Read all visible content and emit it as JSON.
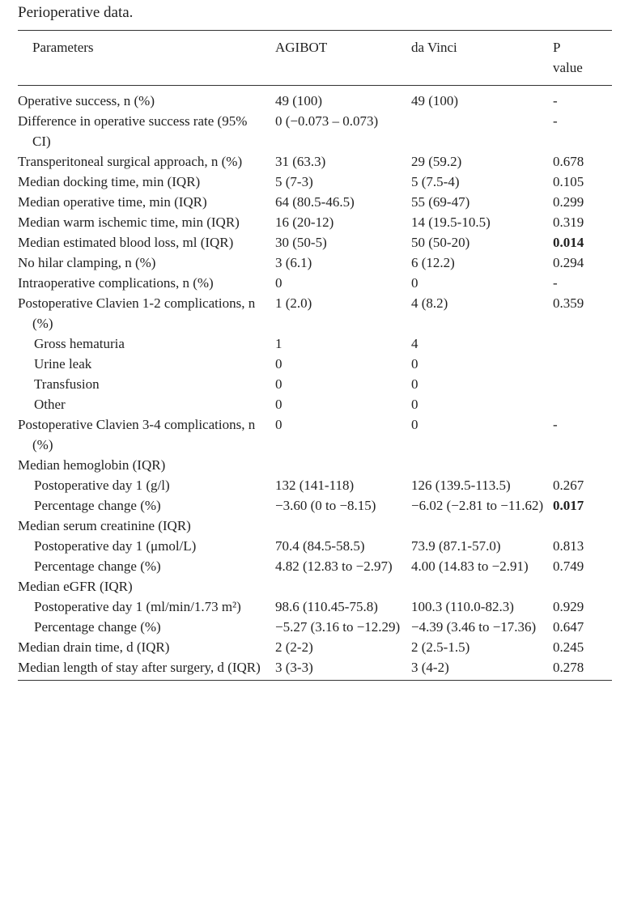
{
  "caption": "Perioperative data.",
  "table": {
    "columns": [
      "Parameters",
      "AGIBOT",
      "da Vinci",
      "P value"
    ],
    "rows": [
      {
        "cells": [
          "Operative success, n (%)",
          "49 (100)",
          "49 (100)",
          "-"
        ]
      },
      {
        "cells": [
          "Difference in operative success rate (95% CI)",
          "0 (−0.073 – 0.073)",
          null,
          "-"
        ]
      },
      {
        "cells": [
          "Transperitoneal surgical approach, n (%)",
          "31 (63.3)",
          "29 (59.2)",
          "0.678"
        ]
      },
      {
        "cells": [
          "Median docking time, min (IQR)",
          "5 (7-3)",
          "5 (7.5-4)",
          "0.105"
        ]
      },
      {
        "cells": [
          "Median operative time, min (IQR)",
          "64 (80.5-46.5)",
          "55 (69-47)",
          "0.299"
        ]
      },
      {
        "cells": [
          "Median warm ischemic time, min (IQR)",
          "16 (20-12)",
          "14 (19.5-10.5)",
          "0.319"
        ]
      },
      {
        "cells": [
          "Median estimated blood loss, ml (IQR)",
          "30 (50-5)",
          "50 (50-20)",
          "0.014"
        ],
        "bold": true
      },
      {
        "cells": [
          "No hilar clamping, n (%)",
          "3 (6.1)",
          "6 (12.2)",
          "0.294"
        ]
      },
      {
        "cells": [
          "Intraoperative complications, n (%)",
          "0",
          "0",
          "-"
        ]
      },
      {
        "cells": [
          "Postoperative Clavien 1-2 complications, n (%)",
          "1 (2.0)",
          "4 (8.2)",
          "0.359"
        ]
      },
      {
        "cells": [
          "Gross hematuria",
          "1",
          "4",
          null
        ],
        "indent": true
      },
      {
        "cells": [
          "Urine leak",
          "0",
          "0",
          null
        ],
        "indent": true
      },
      {
        "cells": [
          "Transfusion",
          "0",
          "0",
          null
        ],
        "indent": true
      },
      {
        "cells": [
          "Other",
          "0",
          "0",
          null
        ],
        "indent": true
      },
      {
        "cells": [
          "Postoperative Clavien 3-4 complications, n (%)",
          "0",
          "0",
          "-"
        ]
      },
      {
        "cells": [
          "Median hemoglobin (IQR)",
          null,
          null,
          null
        ]
      },
      {
        "cells": [
          "Postoperative day 1 (g/l)",
          "132 (141-118)",
          "126 (139.5-113.5)",
          "0.267"
        ],
        "indent": true
      },
      {
        "cells": [
          "Percentage change (%)",
          "−3.60 (0 to −8.15)",
          "−6.02 (−2.81 to −11.62)",
          "0.017"
        ],
        "indent": true,
        "bold": true
      },
      {
        "cells": [
          "Median serum creatinine (IQR)",
          null,
          null,
          null
        ]
      },
      {
        "cells": [
          "Postoperative day 1 (μmol/L)",
          "70.4 (84.5-58.5)",
          "73.9 (87.1-57.0)",
          "0.813"
        ],
        "indent": true
      },
      {
        "cells": [
          "Percentage change (%)",
          "4.82 (12.83 to −2.97)",
          "4.00 (14.83 to −2.91)",
          "0.749"
        ],
        "indent": true
      },
      {
        "cells": [
          "Median eGFR (IQR)",
          null,
          null,
          null
        ]
      },
      {
        "cells": [
          "Postoperative day 1 (ml/min/1.73 m²)",
          "98.6 (110.45-75.8)",
          "100.3 (110.0-82.3)",
          "0.929"
        ],
        "indent": true
      },
      {
        "cells": [
          "Percentage change (%)",
          "−5.27 (3.16 to −12.29)",
          "−4.39 (3.46 to −17.36)",
          "0.647"
        ],
        "indent": true
      },
      {
        "cells": [
          "Median drain time, d (IQR)",
          "2 (2-2)",
          "2 (2.5-1.5)",
          "0.245"
        ]
      },
      {
        "cells": [
          "Median length of stay after surgery, d (IQR)",
          "3 (3-3)",
          "3 (4-2)",
          "0.278"
        ]
      }
    ]
  }
}
